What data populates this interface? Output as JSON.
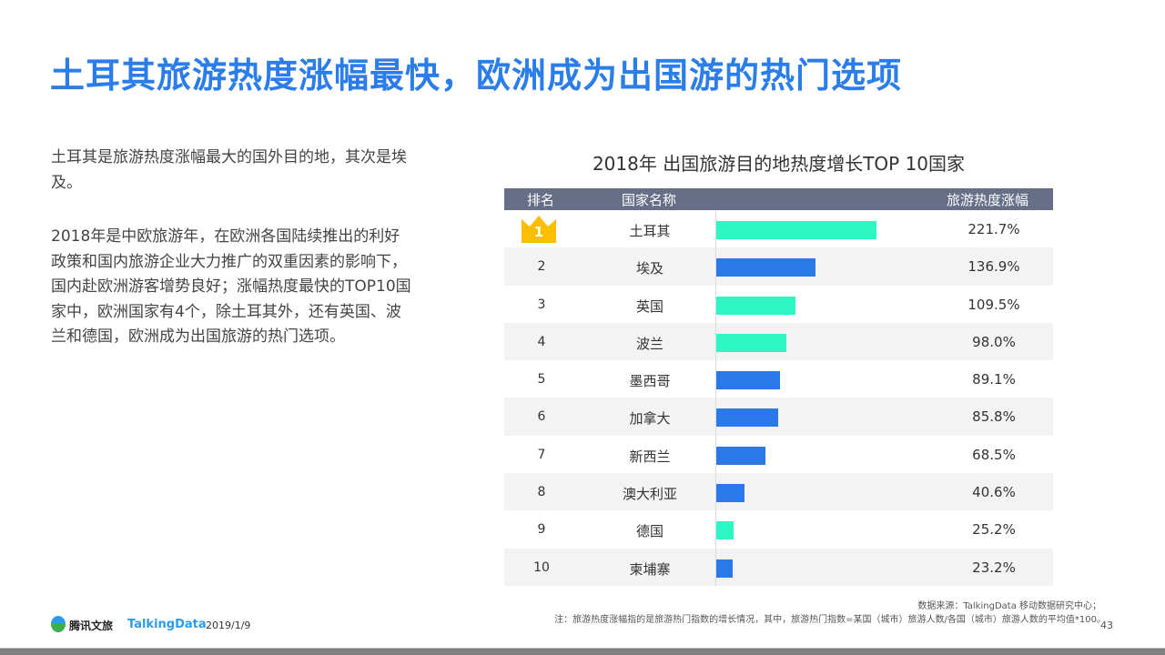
{
  "title": "土耳其旅游热度涨幅最快，欧洲成为出国游的热门选项",
  "paragraphs": [
    "土耳其是旅游热度涨幅最大的国外目的地，其次是埃及。",
    "2018年是中欧旅游年，在欧洲各国陆续推出的利好政策和国内旅游企业大力推广的双重因素的影响下，国内赴欧洲游客增势良好；涨幅热度最快的TOP10国家中，欧洲国家有4个，除土耳其外，还有英国、波兰和德国，欧洲成为出国旅游的热门选项。"
  ],
  "chart_data": {
    "type": "bar",
    "title": "2018年 出国旅游目的地热度增长TOP 10国家",
    "headers": [
      "排名",
      "国家名称",
      "旅游热度涨幅"
    ],
    "ranks": [
      "1",
      "2",
      "3",
      "4",
      "5",
      "6",
      "7",
      "8",
      "9",
      "10"
    ],
    "categories": [
      "土耳其",
      "埃及",
      "英国",
      "波兰",
      "墨西哥",
      "加拿大",
      "新西兰",
      "澳大利亚",
      "德国",
      "柬埔寨"
    ],
    "values": [
      221.7,
      136.9,
      109.5,
      98.0,
      89.1,
      85.8,
      68.5,
      40.6,
      25.2,
      23.2
    ],
    "labels": [
      "221.7%",
      "136.9%",
      "109.5%",
      "98.0%",
      "89.1%",
      "85.8%",
      "68.5%",
      "40.6%",
      "25.2%",
      "23.2%"
    ],
    "europe": [
      true,
      false,
      true,
      true,
      false,
      false,
      false,
      false,
      true,
      false
    ],
    "colors": {
      "europe": "#2ef5c2",
      "other": "#2b79e8"
    }
  },
  "footer": {
    "source": "数据来源：TalkingData  移动数据研究中心；",
    "note": "注：旅游热度涨幅指的是旅游热门指数的增长情况，其中，旅游热门指数=某国（城市）旅游人数/各国（城市）旅游人数的平均值*100。",
    "page": "43",
    "brand1": "腾讯文旅",
    "brand2": "TalkingData",
    "date": "2019/1/9"
  }
}
